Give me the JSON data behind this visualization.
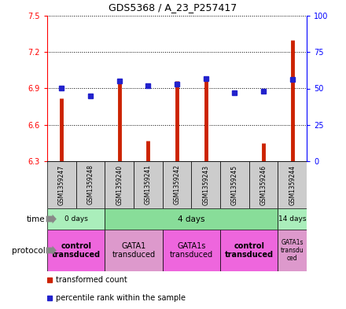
{
  "title": "GDS5368 / A_23_P257417",
  "samples": [
    "GSM1359247",
    "GSM1359248",
    "GSM1359240",
    "GSM1359241",
    "GSM1359242",
    "GSM1359243",
    "GSM1359245",
    "GSM1359246",
    "GSM1359244"
  ],
  "transformed_counts": [
    6.82,
    6.3,
    6.96,
    6.47,
    6.96,
    6.97,
    6.3,
    6.45,
    7.3
  ],
  "percentile_ranks": [
    50,
    45,
    55,
    52,
    53,
    57,
    47,
    48,
    56
  ],
  "ylim_left": [
    6.3,
    7.5
  ],
  "ylim_right": [
    0,
    100
  ],
  "yticks_left": [
    6.3,
    6.6,
    6.9,
    7.2,
    7.5
  ],
  "yticks_right": [
    0,
    25,
    50,
    75,
    100
  ],
  "bar_color": "#cc2200",
  "dot_color": "#2222cc",
  "baseline": 6.3,
  "time_groups": [
    {
      "label": "0 days",
      "start": 0,
      "end": 2,
      "color": "#aaeebb"
    },
    {
      "label": "4 days",
      "start": 2,
      "end": 8,
      "color": "#88dd99"
    },
    {
      "label": "14 days",
      "start": 8,
      "end": 9,
      "color": "#aaeebb"
    }
  ],
  "protocol_groups": [
    {
      "label": "control\ntransduced",
      "start": 0,
      "end": 2,
      "color": "#ee66dd",
      "bold": true
    },
    {
      "label": "GATA1\ntransduced",
      "start": 2,
      "end": 4,
      "color": "#dd99cc",
      "bold": false
    },
    {
      "label": "GATA1s\ntransduced",
      "start": 4,
      "end": 6,
      "color": "#ee66dd",
      "bold": false
    },
    {
      "label": "control\ntransduced",
      "start": 6,
      "end": 8,
      "color": "#ee66dd",
      "bold": true
    },
    {
      "label": "GATA1s\ntransdu\nced",
      "start": 8,
      "end": 9,
      "color": "#dd99cc",
      "bold": false
    }
  ],
  "legend_items": [
    {
      "label": "transformed count",
      "color": "#cc2200"
    },
    {
      "label": "percentile rank within the sample",
      "color": "#2222cc"
    }
  ],
  "fig_width": 4.4,
  "fig_height": 3.93,
  "dpi": 100
}
